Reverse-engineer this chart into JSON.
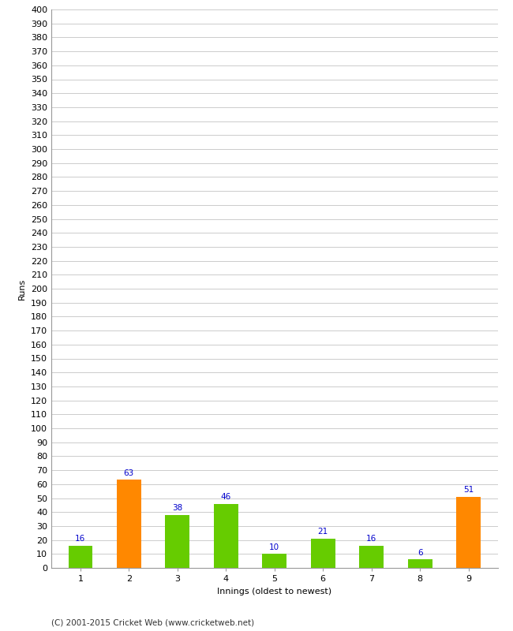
{
  "xlabel": "Innings (oldest to newest)",
  "ylabel": "Runs",
  "categories": [
    "1",
    "2",
    "3",
    "4",
    "5",
    "6",
    "7",
    "8",
    "9"
  ],
  "values": [
    16,
    63,
    38,
    46,
    10,
    21,
    16,
    6,
    51
  ],
  "bar_colors": [
    "#66cc00",
    "#ff8800",
    "#66cc00",
    "#66cc00",
    "#66cc00",
    "#66cc00",
    "#66cc00",
    "#66cc00",
    "#ff8800"
  ],
  "label_color": "#0000cc",
  "yticks": [
    0,
    10,
    20,
    30,
    40,
    50,
    60,
    70,
    80,
    90,
    100,
    110,
    120,
    130,
    140,
    150,
    160,
    170,
    180,
    190,
    200,
    210,
    220,
    230,
    240,
    250,
    260,
    270,
    280,
    290,
    300,
    310,
    320,
    330,
    340,
    350,
    360,
    370,
    380,
    390,
    400
  ],
  "ylim": [
    0,
    400
  ],
  "grid_color": "#cccccc",
  "background_color": "#ffffff",
  "footer": "(C) 2001-2015 Cricket Web (www.cricketweb.net)",
  "bar_width": 0.5,
  "label_fontsize": 7.5,
  "axis_fontsize": 8,
  "ylabel_fontsize": 8,
  "footer_fontsize": 7.5
}
